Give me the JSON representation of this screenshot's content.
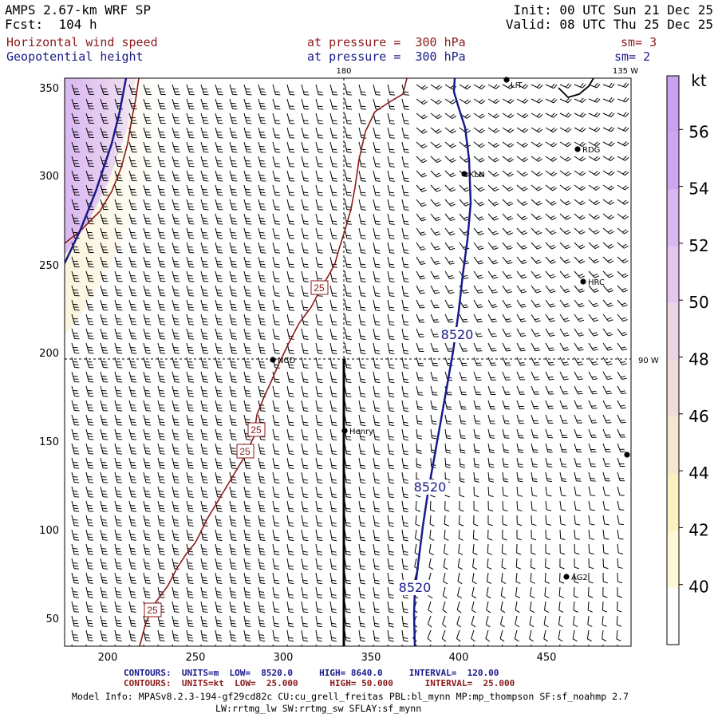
{
  "header": {
    "title_left": "AMPS 2.67-km WRF SP",
    "fcst_label": "Fcst:",
    "fcst_value": "104 h",
    "init": "Init: 00 UTC Sun 21 Dec 25",
    "valid": "Valid: 08 UTC Thu 25 Dec 25",
    "field1_name": "Horizontal wind speed",
    "field1_level": "at pressure =  300 hPa",
    "field1_sm": "sm= 3",
    "field2_name": "Geopotential height",
    "field2_level": "at pressure =  300 hPa",
    "field2_sm": "sm= 2"
  },
  "map": {
    "x_ticks": [
      "200",
      "250",
      "300",
      "350",
      "400",
      "450"
    ],
    "y_ticks": [
      "350",
      "300",
      "250",
      "200",
      "150",
      "100",
      "50"
    ],
    "meridian_180": "180",
    "meridian_135w": "135 W",
    "meridian_90w": "90 W",
    "stations": [
      {
        "name": "LIT"
      },
      {
        "name": "RDG"
      },
      {
        "name": "KLN"
      },
      {
        "name": "HRC"
      },
      {
        "name": "NCD"
      },
      {
        "name": "Henry"
      },
      {
        "name": "AG2"
      }
    ],
    "height_contour_labels": [
      "8520",
      "8520",
      "8520"
    ],
    "wind_contour_labels": [
      "25",
      "25",
      "25",
      "25"
    ]
  },
  "colorbar": {
    "unit": "kt",
    "labels": [
      "56",
      "54",
      "52",
      "50",
      "48",
      "46",
      "44",
      "42",
      "40"
    ],
    "colors": [
      "#ffffff",
      "#fff8d6",
      "#fbf0c0",
      "#f6e8cf",
      "#f0dcd8",
      "#ecd4e2",
      "#e4c6ee",
      "#d9b8f2",
      "#cda7f0",
      "#c8a2ee"
    ]
  },
  "footer": {
    "contours_label": "CONTOURS:",
    "units_m": "UNITS=m",
    "low_m_label": "LOW=",
    "low_m": "8520.0",
    "high_m_label": "HIGH=",
    "high_m": "8640.0",
    "interval_m_label": "INTERVAL=",
    "interval_m": "120.00",
    "units_kt": "UNITS=kt",
    "low_kt": "25.000",
    "high_kt": "50.000",
    "interval_kt": "25.000",
    "model_info_1": "Model Info: MPASv8.2.3-194-gf29cd82c CU:cu_grell_freitas PBL:bl_mynn MP:mp_thompson SF:sf_noahmp 2.7",
    "model_info_2": "LW:rrtmg_lw SW:rrtmg_sw SFLAY:sf_mynn"
  }
}
